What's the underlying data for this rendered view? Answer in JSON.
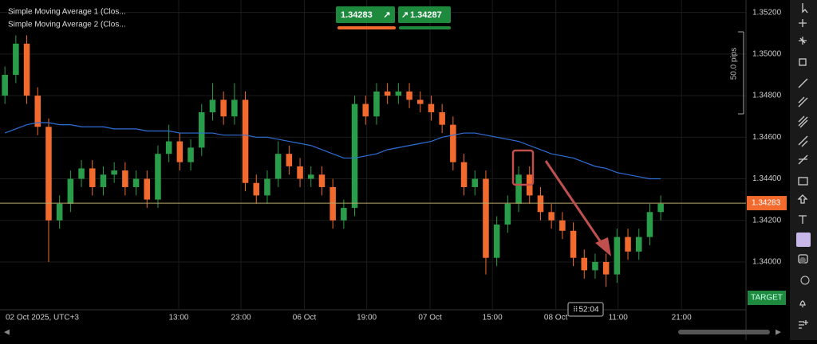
{
  "chart_data": {
    "type": "candlestick",
    "legend": [
      "Simple Moving Average 1 (Clos...",
      "Simple Moving Average 2 (Clos..."
    ],
    "x": [
      0,
      1,
      2,
      3,
      4,
      5,
      6,
      7,
      8,
      9,
      10,
      11,
      12,
      13,
      14,
      15,
      16,
      17,
      18,
      19,
      20,
      21,
      22,
      23,
      24,
      25,
      26,
      27,
      28,
      29,
      30,
      31,
      32,
      33,
      34,
      35,
      36,
      37,
      38,
      39,
      40,
      41,
      42,
      43,
      44,
      45,
      46,
      47,
      48,
      49,
      50,
      51,
      52,
      53,
      54,
      55,
      56,
      57,
      58,
      59,
      60
    ],
    "candles": {
      "open": [
        1.348,
        1.349,
        1.3505,
        1.348,
        1.3465,
        1.342,
        1.3428,
        1.344,
        1.3445,
        1.3436,
        1.3442,
        1.3444,
        1.3436,
        1.344,
        1.343,
        1.3452,
        1.3458,
        1.3448,
        1.3455,
        1.3472,
        1.3478,
        1.347,
        1.3478,
        1.3438,
        1.3432,
        1.344,
        1.3452,
        1.3446,
        1.344,
        1.3442,
        1.3436,
        1.342,
        1.3426,
        1.3476,
        1.347,
        1.3482,
        1.348,
        1.3482,
        1.3478,
        1.3476,
        1.3472,
        1.3466,
        1.3448,
        1.3436,
        1.344,
        1.3402,
        1.3418,
        1.3428,
        1.3442,
        1.3432,
        1.3424,
        1.342,
        1.3415,
        1.3402,
        1.3396,
        1.34,
        1.3394,
        1.3412,
        1.3405,
        1.3412,
        1.3424
      ],
      "high": [
        1.3494,
        1.3509,
        1.3509,
        1.3484,
        1.3469,
        1.3432,
        1.3444,
        1.3449,
        1.3449,
        1.3446,
        1.3448,
        1.3448,
        1.3444,
        1.3444,
        1.3456,
        1.3466,
        1.3462,
        1.3459,
        1.3476,
        1.3486,
        1.3482,
        1.3486,
        1.3482,
        1.3442,
        1.3444,
        1.3458,
        1.3456,
        1.345,
        1.3446,
        1.3446,
        1.344,
        1.343,
        1.348,
        1.348,
        1.3486,
        1.3486,
        1.3486,
        1.3486,
        1.3482,
        1.348,
        1.3476,
        1.347,
        1.3452,
        1.3444,
        1.3444,
        1.3422,
        1.3432,
        1.3446,
        1.3446,
        1.3436,
        1.3428,
        1.3424,
        1.3419,
        1.3406,
        1.3404,
        1.3404,
        1.3416,
        1.3416,
        1.3416,
        1.3428,
        1.3432
      ],
      "low": [
        1.3476,
        1.3486,
        1.3476,
        1.3461,
        1.34,
        1.3416,
        1.3424,
        1.3436,
        1.3432,
        1.3432,
        1.3438,
        1.3432,
        1.3432,
        1.3426,
        1.3426,
        1.3448,
        1.3444,
        1.3444,
        1.3451,
        1.3468,
        1.3466,
        1.3466,
        1.3434,
        1.3428,
        1.3428,
        1.3436,
        1.3442,
        1.3436,
        1.3436,
        1.3432,
        1.3416,
        1.3416,
        1.3422,
        1.3466,
        1.3466,
        1.3476,
        1.3476,
        1.3474,
        1.3472,
        1.3468,
        1.3462,
        1.3444,
        1.3432,
        1.3432,
        1.3394,
        1.3398,
        1.3414,
        1.3424,
        1.3428,
        1.342,
        1.3416,
        1.3411,
        1.3398,
        1.3392,
        1.3392,
        1.3388,
        1.339,
        1.3401,
        1.3401,
        1.3408,
        1.342
      ],
      "close": [
        1.349,
        1.3505,
        1.348,
        1.3465,
        1.342,
        1.3428,
        1.344,
        1.3445,
        1.3436,
        1.3442,
        1.3444,
        1.3436,
        1.344,
        1.343,
        1.3452,
        1.3458,
        1.3448,
        1.3455,
        1.3472,
        1.3478,
        1.347,
        1.3478,
        1.3438,
        1.3432,
        1.344,
        1.3452,
        1.3446,
        1.344,
        1.3442,
        1.3436,
        1.342,
        1.3426,
        1.3476,
        1.347,
        1.3482,
        1.348,
        1.3482,
        1.3478,
        1.3476,
        1.3472,
        1.3466,
        1.3448,
        1.3436,
        1.344,
        1.3402,
        1.3418,
        1.3428,
        1.3442,
        1.3432,
        1.3424,
        1.342,
        1.3415,
        1.3402,
        1.3396,
        1.34,
        1.3394,
        1.3412,
        1.3405,
        1.3412,
        1.3424,
        1.3428
      ],
      "up_color": "#2a9d4a",
      "down_color": "#f26a2e"
    },
    "series": [
      {
        "name": "Simple Moving Average 1 (Clos...",
        "color": "#2f6fd6",
        "values": [
          1.3462,
          1.3464,
          1.3466,
          1.3467,
          1.3467,
          1.3466,
          1.3466,
          1.3465,
          1.3465,
          1.3465,
          1.3464,
          1.3464,
          1.3464,
          1.3463,
          1.3463,
          1.3463,
          1.3462,
          1.3462,
          1.3462,
          1.3462,
          1.3461,
          1.3461,
          1.3461,
          1.346,
          1.346,
          1.3459,
          1.3458,
          1.3457,
          1.3456,
          1.3454,
          1.3452,
          1.345,
          1.345,
          1.3451,
          1.3452,
          1.3454,
          1.3455,
          1.3456,
          1.3457,
          1.3458,
          1.346,
          1.3461,
          1.3462,
          1.3462,
          1.3461,
          1.346,
          1.3459,
          1.3458,
          1.3456,
          1.3454,
          1.3452,
          1.3451,
          1.345,
          1.3448,
          1.3446,
          1.3445,
          1.3443,
          1.3442,
          1.3441,
          1.344,
          1.344
        ]
      }
    ],
    "xlim": [
      -0.45,
      67.8
    ],
    "ylim": [
      1.3377,
      1.3526
    ],
    "xticks": [
      {
        "value": 15.9,
        "label": "13:00"
      },
      {
        "value": 21.6,
        "label": "23:00"
      },
      {
        "value": 27.4,
        "label": "06 Oct"
      },
      {
        "value": 33.1,
        "label": "19:00"
      },
      {
        "value": 38.9,
        "label": "07 Oct"
      },
      {
        "value": 44.6,
        "label": "15:00"
      },
      {
        "value": 50.4,
        "label": "08 Oct"
      },
      {
        "value": 56.1,
        "label": "11:00"
      },
      {
        "value": 61.9,
        "label": "21:00"
      }
    ],
    "yticks": [
      {
        "value": 1.34,
        "label": "1.34000"
      },
      {
        "value": 1.342,
        "label": "1.34200"
      },
      {
        "value": 1.344,
        "label": "1.34400"
      },
      {
        "value": 1.346,
        "label": "1.34600"
      },
      {
        "value": 1.348,
        "label": "1.34800"
      },
      {
        "value": 1.35,
        "label": "1.35000"
      },
      {
        "value": 1.352,
        "label": "1.35200"
      }
    ],
    "grid": true,
    "start_label": "02 Oct 2025, UTC+3",
    "current_price": 1.34283,
    "bid": 1.34283,
    "ask": 1.34287,
    "ruler_label": "50.0 pips",
    "target_label": "TARGET",
    "countdown": "52:04"
  }
}
